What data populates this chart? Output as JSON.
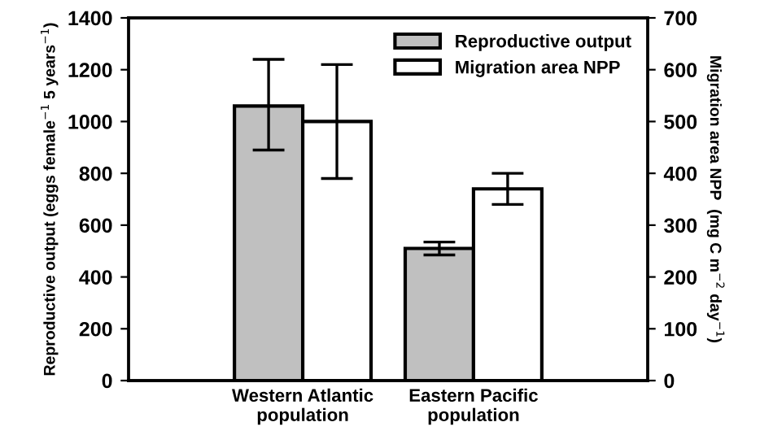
{
  "chart_data": {
    "type": "bar",
    "categories": [
      "Western Atlantic\npopulation",
      "Eastern Pacific\npopulation"
    ],
    "series": [
      {
        "name": "Reproductive output",
        "color": "#c0c0c0",
        "values": [
          1060,
          510
        ],
        "errors": [
          [
            890,
            1240
          ],
          [
            485,
            535
          ]
        ]
      },
      {
        "name": "Migration area NPP",
        "color": "#ffffff",
        "axis": "y2",
        "values": [
          500,
          370
        ],
        "errors": [
          [
            390,
            610
          ],
          [
            340,
            400
          ]
        ]
      }
    ],
    "ylabel": "Reproductive output (eggs female$^{−1}$ 5 years$^{−1}$)",
    "y2label": "Migration area NPP  (mg C m$^{−2}$ day$^{−1}$)",
    "ylim": [
      0,
      1400
    ],
    "yticks": [
      0,
      200,
      400,
      600,
      800,
      1000,
      1200,
      1400
    ],
    "y2lim": [
      0,
      700
    ],
    "y2ticks": [
      0,
      100,
      200,
      300,
      400,
      500,
      600,
      700
    ],
    "legend": "top right",
    "grid": false
  }
}
